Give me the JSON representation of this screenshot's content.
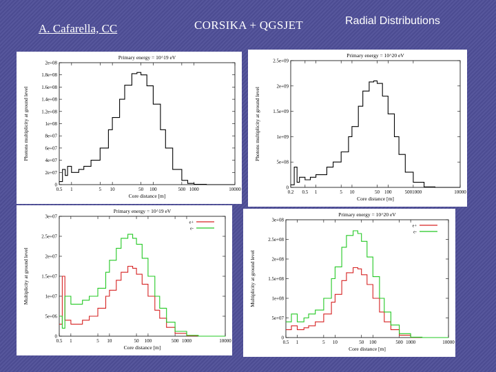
{
  "header": {
    "author": "A. Cafarella, CC",
    "simulation": "CORSIKA + QGSJET",
    "section_title": "Radial Distributions"
  },
  "colors": {
    "background": "#4f4f98",
    "photon_line": "#000000",
    "mu_plus": "#d62020",
    "mu_minus": "#22c822"
  },
  "chart_data": [
    {
      "type": "line",
      "title": "Primary energy = 10^19 eV",
      "xlabel": "Core distance [m]",
      "ylabel": "Photons multiplicity at ground level",
      "xscale": "log",
      "xlim": [
        0.5,
        10000
      ],
      "ylim": [
        0,
        200000000
      ],
      "yticks": [
        "0",
        "2e+07",
        "4e+07",
        "6e+07",
        "8e+07",
        "1e+08",
        "1.2e+08",
        "1.4e+08",
        "1.6e+08",
        "1.8e+08",
        "2e+08"
      ],
      "xticks": [
        "0.5",
        "1",
        "5",
        "10",
        "50",
        "100",
        "500",
        "1000",
        "10000"
      ],
      "legend": [],
      "series": [
        {
          "name": "photons",
          "color": "#000000",
          "x": [
            0.5,
            0.6,
            0.7,
            0.8,
            1,
            1.5,
            2,
            3,
            5,
            8,
            10,
            15,
            20,
            30,
            40,
            50,
            70,
            100,
            150,
            200,
            300,
            500,
            700,
            1000,
            2000,
            5000,
            10000
          ],
          "y": [
            5000000.0,
            25000000.0,
            15000000.0,
            30000000.0,
            20000000.0,
            25000000.0,
            30000000.0,
            40000000.0,
            60000000.0,
            90000000.0,
            110000000.0,
            140000000.0,
            163000000.0,
            182000000.0,
            184000000.0,
            180000000.0,
            162000000.0,
            132000000.0,
            90000000.0,
            60000000.0,
            25000000.0,
            7000000.0,
            2000000.0,
            500000.0,
            0,
            0,
            0
          ]
        }
      ]
    },
    {
      "type": "line",
      "title": "Primary energy = 10^20 eV",
      "xlabel": "Core distance [m]",
      "ylabel": "Photons multiplicity at ground level",
      "xscale": "log",
      "xlim": [
        0.2,
        10000
      ],
      "ylim": [
        0,
        2500000000
      ],
      "yticks": [
        "0",
        "5e+08",
        "1e+09",
        "1.5e+09",
        "2e+09",
        "2.5e+09"
      ],
      "xticks": [
        "0.2",
        "0.5",
        "1",
        "5",
        "10",
        "50",
        "100",
        "5001000",
        "10000"
      ],
      "legend": [],
      "series": [
        {
          "name": "photons",
          "color": "#000000",
          "x": [
            0.2,
            0.25,
            0.3,
            0.35,
            0.5,
            0.7,
            1,
            2,
            3,
            5,
            8,
            10,
            15,
            20,
            30,
            40,
            50,
            70,
            100,
            150,
            200,
            300,
            500,
            1000,
            2000,
            5000,
            10000
          ],
          "y": [
            50000000.0,
            400000000.0,
            100000000.0,
            200000000.0,
            150000000.0,
            200000000.0,
            250000000.0,
            400000000.0,
            500000000.0,
            700000000.0,
            1000000000.0,
            1200000000.0,
            1600000000.0,
            1900000000.0,
            2080000000.0,
            2100000000.0,
            2050000000.0,
            1800000000.0,
            1450000000.0,
            1000000000.0,
            650000000.0,
            300000000.0,
            100000000.0,
            10000000.0,
            0,
            0,
            0
          ]
        }
      ]
    },
    {
      "type": "line",
      "title": "Primary energy = 10^19 eV",
      "xlabel": "Core distance [m]",
      "ylabel": "Multiplicity at ground level",
      "xscale": "log",
      "xlim": [
        0.5,
        10000
      ],
      "ylim": [
        0,
        30000000
      ],
      "yticks": [
        "0",
        "5e+06",
        "1e+07",
        "1.5e+07",
        "2e+07",
        "2.5e+07",
        "3e+07"
      ],
      "xticks": [
        "0.5",
        "1",
        "5",
        "10",
        "50",
        "100",
        "500",
        "1000",
        "10000"
      ],
      "legend": [
        "e+",
        "e-"
      ],
      "series": [
        {
          "name": "e+",
          "color": "#d62020",
          "x": [
            0.5,
            0.6,
            0.7,
            1,
            1.5,
            2,
            3,
            5,
            8,
            10,
            15,
            20,
            30,
            40,
            50,
            70,
            100,
            150,
            200,
            300,
            500,
            1000,
            2000,
            5000,
            10000
          ],
          "y": [
            3000000.0,
            15000000.0,
            4000000.0,
            3000000.0,
            3000000.0,
            4000000.0,
            5000000.0,
            7000000.0,
            10000000.0,
            11500000.0,
            14000000.0,
            16000000.0,
            17500000.0,
            17000000.0,
            15500000.0,
            13000000.0,
            10000000.0,
            6500000.0,
            4500000.0,
            2200000.0,
            700000.0,
            100000.0,
            0,
            0,
            0
          ]
        },
        {
          "name": "e-",
          "color": "#22c822",
          "x": [
            0.5,
            0.6,
            0.7,
            1,
            1.5,
            2,
            3,
            5,
            8,
            10,
            15,
            20,
            30,
            40,
            50,
            70,
            100,
            150,
            200,
            300,
            500,
            1000,
            2000,
            5000,
            10000
          ],
          "y": [
            5000000.0,
            2000000.0,
            10000000.0,
            8000000.0,
            8000000.0,
            9000000.0,
            10000000.0,
            12000000.0,
            16000000.0,
            19000000.0,
            22000000.0,
            24500000.0,
            25500000.0,
            24500000.0,
            23000000.0,
            19500000.0,
            15000000.0,
            10000000.0,
            7000000.0,
            3500000.0,
            1200000.0,
            200000.0,
            0,
            0,
            0
          ]
        }
      ]
    },
    {
      "type": "line",
      "title": "Primary energy = 10^20 eV",
      "xlabel": "Core distance [m]",
      "ylabel": "Multiplicity at ground level",
      "xscale": "log",
      "xlim": [
        0.5,
        10000
      ],
      "ylim": [
        0,
        300000000
      ],
      "yticks": [
        "0",
        "5e+07",
        "1e+08",
        "1.5e+08",
        "2e+08",
        "2.5e+08",
        "3e+08"
      ],
      "xticks": [
        "0.5",
        "1",
        "5",
        "10",
        "50",
        "100",
        "500",
        "1000",
        "10000"
      ],
      "legend": [
        "e+",
        "e-"
      ],
      "series": [
        {
          "name": "e+",
          "color": "#d62020",
          "x": [
            0.5,
            0.7,
            1,
            1.5,
            2,
            3,
            5,
            8,
            10,
            15,
            20,
            30,
            40,
            50,
            70,
            100,
            150,
            200,
            300,
            500,
            1000,
            2000,
            5000,
            10000
          ],
          "y": [
            20000000.0,
            30000000.0,
            20000000.0,
            25000000.0,
            30000000.0,
            40000000.0,
            60000000.0,
            90000000.0,
            110000000.0,
            145000000.0,
            165000000.0,
            178000000.0,
            175000000.0,
            160000000.0,
            135000000.0,
            100000000.0,
            65000000.0,
            40000000.0,
            20000000.0,
            6000000.0,
            500000.0,
            0,
            0,
            0
          ]
        },
        {
          "name": "e-",
          "color": "#22c822",
          "x": [
            0.5,
            0.7,
            1,
            1.5,
            2,
            3,
            5,
            8,
            10,
            15,
            20,
            30,
            40,
            50,
            70,
            100,
            150,
            200,
            300,
            500,
            1000,
            2000,
            5000,
            10000
          ],
          "y": [
            40000000.0,
            60000000.0,
            40000000.0,
            50000000.0,
            60000000.0,
            70000000.0,
            100000000.0,
            150000000.0,
            180000000.0,
            230000000.0,
            260000000.0,
            272000000.0,
            265000000.0,
            245000000.0,
            205000000.0,
            155000000.0,
            100000000.0,
            65000000.0,
            32000000.0,
            10000000.0,
            1000000.0,
            0,
            0,
            0
          ]
        }
      ]
    }
  ]
}
